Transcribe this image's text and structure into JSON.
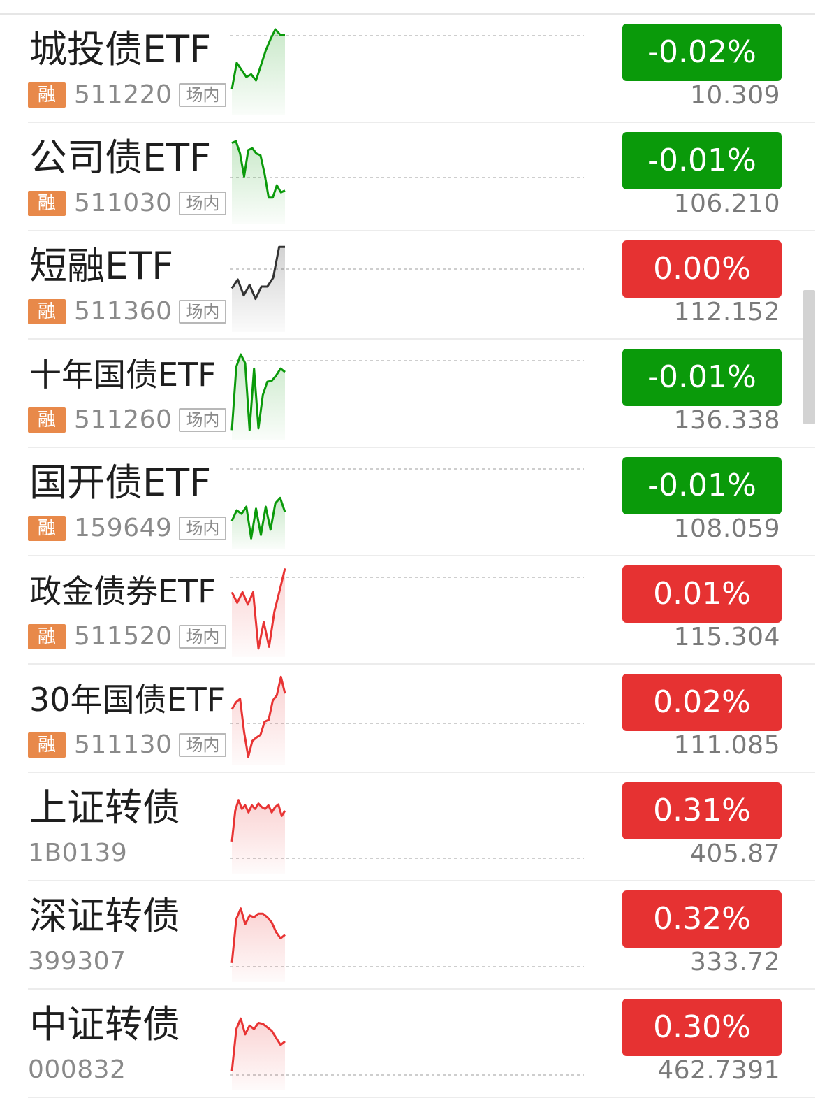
{
  "colors": {
    "up": "#e83434",
    "down": "#0b9a0b",
    "flat": "#333333",
    "up_box": "#e63232",
    "down_box": "#0a9a0a",
    "rong_badge": "#e8894a"
  },
  "rows": [
    {
      "name": "城投债ETF",
      "rong": "融",
      "code": "511220",
      "venue": "场内",
      "change_pct": "-0.02%",
      "price": "10.309",
      "trend": "down",
      "sparkline": [
        0.28,
        0.58,
        0.5,
        0.42,
        0.45,
        0.38,
        0.55,
        0.72,
        0.85,
        0.96,
        0.9,
        0.9
      ]
    },
    {
      "name": "公司债ETF",
      "rong": "融",
      "code": "511030",
      "venue": "场内",
      "change_pct": "-0.01%",
      "price": "106.210",
      "trend": "down",
      "sparkline": [
        0.9,
        0.92,
        0.78,
        0.52,
        0.82,
        0.84,
        0.78,
        0.76,
        0.55,
        0.28,
        0.28,
        0.42,
        0.34,
        0.36
      ]
    },
    {
      "name": "短融ETF",
      "rong": "融",
      "code": "511360",
      "venue": "场内",
      "change_pct": "0.00%",
      "price": "112.152",
      "trend": "flat",
      "sparkline": [
        0.48,
        0.58,
        0.4,
        0.52,
        0.36,
        0.5,
        0.5,
        0.6,
        0.95,
        0.95
      ]
    },
    {
      "name": "十年国债ETF",
      "rong": "融",
      "code": "511260",
      "venue": "场内",
      "change_pct": "-0.01%",
      "price": "136.338",
      "trend": "down",
      "sparkline": [
        0.1,
        0.82,
        0.96,
        0.86,
        0.1,
        0.8,
        0.12,
        0.5,
        0.65,
        0.66,
        0.72,
        0.8,
        0.76
      ]
    },
    {
      "name": "国开债ETF",
      "rong": "融",
      "code": "159649",
      "venue": "场内",
      "change_pct": "-0.01%",
      "price": "108.059",
      "trend": "down",
      "sparkline": [
        0.3,
        0.42,
        0.38,
        0.46,
        0.1,
        0.44,
        0.14,
        0.46,
        0.2,
        0.5,
        0.56,
        0.4
      ]
    },
    {
      "name": "政金债券ETF",
      "rong": "融",
      "code": "511520",
      "venue": "场内",
      "change_pct": "0.01%",
      "price": "115.304",
      "trend": "up",
      "sparkline": [
        0.72,
        0.6,
        0.72,
        0.58,
        0.72,
        0.08,
        0.38,
        0.1,
        0.5,
        0.74,
        0.99
      ]
    },
    {
      "name": "30年国债ETF",
      "rong": "融",
      "code": "511130",
      "venue": "场内",
      "change_pct": "0.02%",
      "price": "111.085",
      "trend": "up",
      "sparkline": [
        0.62,
        0.7,
        0.74,
        0.36,
        0.08,
        0.26,
        0.3,
        0.33,
        0.48,
        0.5,
        0.72,
        0.78,
        0.99,
        0.8
      ]
    },
    {
      "name": "上证转债",
      "rong": "",
      "code": "1B0139",
      "venue": "",
      "change_pct": "0.31%",
      "price": "405.87",
      "trend": "up",
      "sparkline": [
        0.35,
        0.7,
        0.82,
        0.72,
        0.76,
        0.68,
        0.76,
        0.72,
        0.78,
        0.74,
        0.72,
        0.76,
        0.68,
        0.74,
        0.77,
        0.64,
        0.7
      ]
    },
    {
      "name": "深证转债",
      "rong": "",
      "code": "399307",
      "venue": "",
      "change_pct": "0.32%",
      "price": "333.72",
      "trend": "up",
      "sparkline": [
        0.2,
        0.7,
        0.82,
        0.64,
        0.74,
        0.72,
        0.76,
        0.76,
        0.72,
        0.66,
        0.55,
        0.48,
        0.52
      ]
    },
    {
      "name": "中证转债",
      "rong": "",
      "code": "000832",
      "venue": "",
      "change_pct": "0.30%",
      "price": "462.7391",
      "trend": "up",
      "sparkline": [
        0.2,
        0.68,
        0.8,
        0.62,
        0.72,
        0.68,
        0.75,
        0.74,
        0.7,
        0.66,
        0.58,
        0.5,
        0.54
      ]
    }
  ]
}
